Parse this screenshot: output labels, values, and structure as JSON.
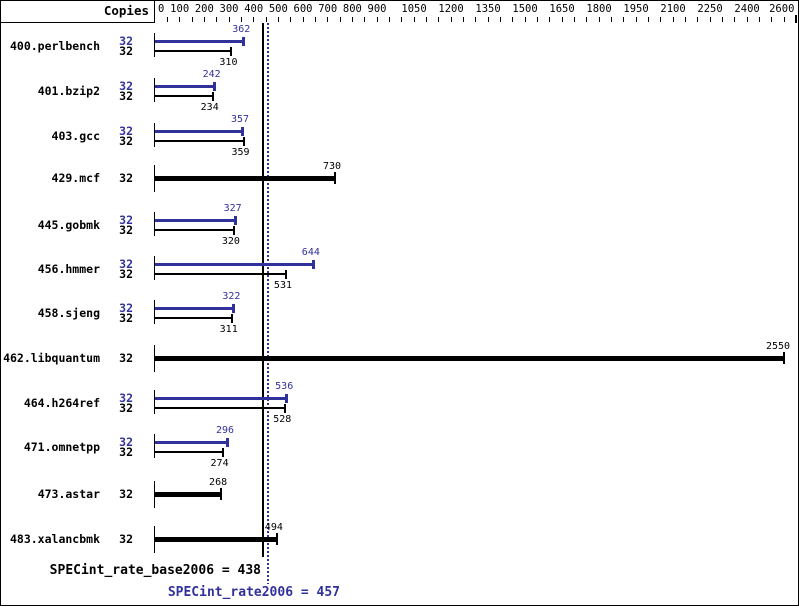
{
  "header": {
    "copies_label": "Copies"
  },
  "colors": {
    "peak_blue": "#31319c",
    "base_black": "#000000",
    "background": "#ffffff"
  },
  "summary": {
    "base_text": "SPECint_rate_base2006 = 438",
    "peak_text": "SPECint_rate2006 = 457"
  },
  "chart_data": {
    "type": "bar",
    "orientation": "horizontal",
    "title": "",
    "xlabel": "",
    "ylabel": "",
    "axis": {
      "min": 0,
      "max": 2600,
      "minor_tick_step": 50,
      "labeled_ticks": [
        0,
        100,
        200,
        300,
        400,
        500,
        600,
        700,
        800,
        900,
        1050,
        1200,
        1350,
        1500,
        1650,
        1800,
        1950,
        2100,
        2250,
        2400,
        2600
      ]
    },
    "series": [
      {
        "name": "peak",
        "color": "#31319c"
      },
      {
        "name": "base",
        "color": "#000000"
      }
    ],
    "benchmarks": [
      {
        "name": "400.perlbench",
        "copies": 32,
        "peak": 362,
        "base": 310
      },
      {
        "name": "401.bzip2",
        "copies": 32,
        "peak": 242,
        "base": 234
      },
      {
        "name": "403.gcc",
        "copies": 32,
        "peak": 357,
        "base": 359
      },
      {
        "name": "429.mcf",
        "copies": 32,
        "base": 730
      },
      {
        "name": "445.gobmk",
        "copies": 32,
        "peak": 327,
        "base": 320
      },
      {
        "name": "456.hmmer",
        "copies": 32,
        "peak": 644,
        "base": 531
      },
      {
        "name": "458.sjeng",
        "copies": 32,
        "peak": 322,
        "base": 311
      },
      {
        "name": "462.libquantum",
        "copies": 32,
        "base": 2550
      },
      {
        "name": "464.h264ref",
        "copies": 32,
        "peak": 536,
        "base": 528
      },
      {
        "name": "471.omnetpp",
        "copies": 32,
        "peak": 296,
        "base": 274
      },
      {
        "name": "473.astar",
        "copies": 32,
        "base": 268
      },
      {
        "name": "483.xalancbmk",
        "copies": 32,
        "base": 494
      }
    ],
    "reference_lines": [
      {
        "name": "SPECint_rate_base2006",
        "value": 438,
        "style": "solid",
        "color": "#000000"
      },
      {
        "name": "SPECint_rate2006",
        "value": 457,
        "style": "dotted",
        "color": "#31319c"
      }
    ]
  }
}
